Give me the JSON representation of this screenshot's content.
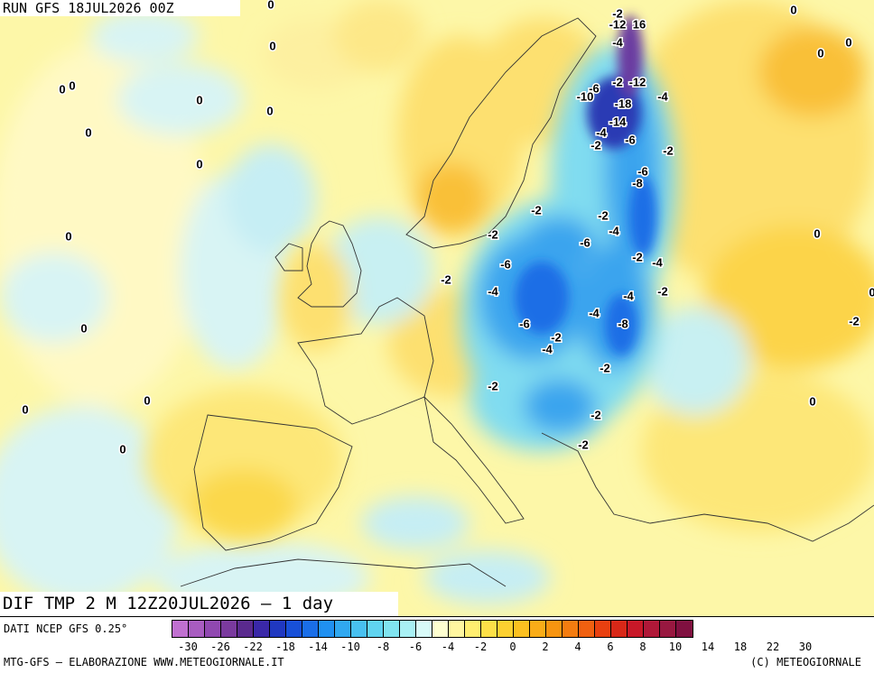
{
  "header": {
    "run_title": "RUN GFS 18JUL2026 00Z"
  },
  "map_title": "DIF TMP 2 M 12Z20JUL2026 – 1 day",
  "footer": {
    "source": "DATI NCEP GFS 0.25°",
    "credit_left": "MTG-GFS – ELABORAZIONE WWW.METEOGIORNALE.IT",
    "credit_right": "(C) METEOGIORNALE"
  },
  "legend": {
    "colors": [
      "#c070d0",
      "#a85cc0",
      "#9048b0",
      "#7a3a9e",
      "#5a2a8e",
      "#3a28a8",
      "#2038c0",
      "#1850d8",
      "#1a6ee8",
      "#2090f0",
      "#30a8f0",
      "#48c0f0",
      "#60d4f0",
      "#80e4f0",
      "#a8f0f4",
      "#d8faf8",
      "#ffffd0",
      "#fff6a0",
      "#ffee70",
      "#fde048",
      "#fcd030",
      "#fbc020",
      "#f9ac18",
      "#f79410",
      "#f47c10",
      "#f06010",
      "#e84010",
      "#d82818",
      "#c81828",
      "#b01838",
      "#981840",
      "#801040"
    ],
    "tick_labels": [
      "-30",
      "-26",
      "-22",
      "-18",
      "-14",
      "-10",
      "-8",
      "-6",
      "-4",
      "-2",
      "0",
      "2",
      "4",
      "6",
      "8",
      "10",
      "14",
      "18",
      "22",
      "30"
    ]
  },
  "map_labels": [
    {
      "text": "0"
    },
    {
      "text": "0"
    },
    {
      "text": "0"
    },
    {
      "text": "0"
    },
    {
      "text": "0"
    },
    {
      "text": "0"
    },
    {
      "text": "0"
    },
    {
      "text": "0"
    },
    {
      "text": "0"
    },
    {
      "text": "0"
    },
    {
      "text": "0"
    },
    {
      "text": "0"
    },
    {
      "text": "0"
    },
    {
      "text": "0"
    },
    {
      "text": "0"
    },
    {
      "text": "0"
    },
    {
      "text": "0"
    },
    {
      "text": "0"
    },
    {
      "text": "0"
    },
    {
      "text": "-2"
    },
    {
      "text": "-12"
    },
    {
      "text": "16"
    },
    {
      "text": "-4"
    },
    {
      "text": "-6"
    },
    {
      "text": "-10"
    },
    {
      "text": "-2"
    },
    {
      "text": "-12"
    },
    {
      "text": "-18"
    },
    {
      "text": "-4"
    },
    {
      "text": "-14"
    },
    {
      "text": "-4"
    },
    {
      "text": "-2"
    },
    {
      "text": "-6"
    },
    {
      "text": "-2"
    },
    {
      "text": "-6"
    },
    {
      "text": "-8"
    },
    {
      "text": "-2"
    },
    {
      "text": "-2"
    },
    {
      "text": "-2"
    },
    {
      "text": "-4"
    },
    {
      "text": "-6"
    },
    {
      "text": "-2"
    },
    {
      "text": "-4"
    },
    {
      "text": "-2"
    },
    {
      "text": "-4"
    },
    {
      "text": "-2"
    },
    {
      "text": "-4"
    },
    {
      "text": "-6"
    },
    {
      "text": "-4"
    },
    {
      "text": "-8"
    },
    {
      "text": "-6"
    },
    {
      "text": "-2"
    },
    {
      "text": "-4"
    },
    {
      "text": "-2"
    },
    {
      "text": "-2"
    },
    {
      "text": "-2"
    },
    {
      "text": "-2"
    },
    {
      "text": "-2"
    }
  ]
}
